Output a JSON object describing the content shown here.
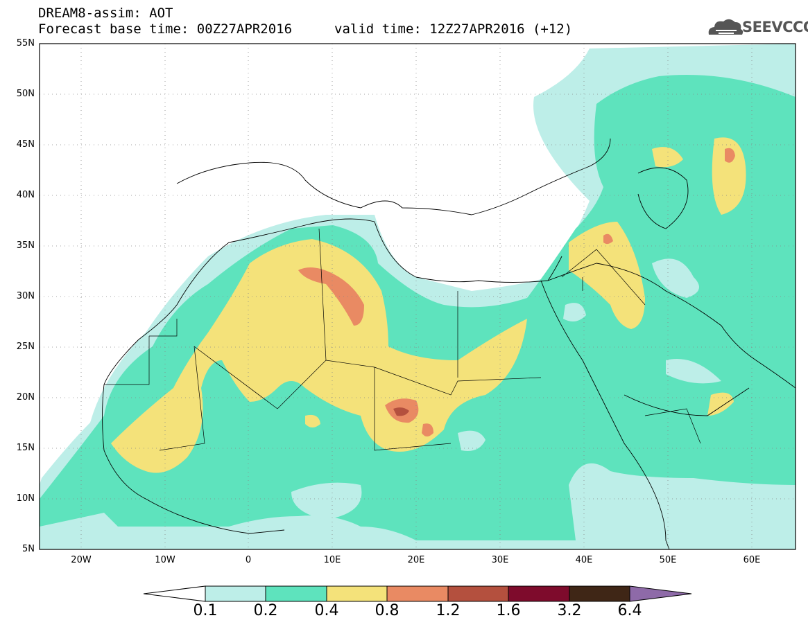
{
  "header": {
    "line1": "DREAM8-assim: AOT",
    "line2": "Forecast base time: 00Z27APR2016",
    "valid": "valid time: 12Z27APR2016 (+12)"
  },
  "logo": {
    "text": "SEEVCCC",
    "icon": "cloud-icon"
  },
  "map": {
    "projection": "lat-lon",
    "lon_range": [
      -25,
      65
    ],
    "lat_range": [
      5,
      55
    ],
    "lat_ticks": [
      "55N",
      "50N",
      "45N",
      "40N",
      "35N",
      "30N",
      "25N",
      "20N",
      "15N",
      "10N",
      "5N"
    ],
    "lon_ticks": [
      "20W",
      "10W",
      "0",
      "10E",
      "20E",
      "30E",
      "40E",
      "50E",
      "60E"
    ],
    "grid": "dotted"
  },
  "colorbar": {
    "levels": [
      "0.1",
      "0.2",
      "0.4",
      "0.8",
      "1.2",
      "1.6",
      "3.2",
      "6.4"
    ],
    "colors": [
      "#bdeee8",
      "#5ee3bd",
      "#f4e27a",
      "#e98a63",
      "#b4503e",
      "#7e0b2c",
      "#3f2616",
      "#8e6aa8"
    ],
    "below_color": "#ffffff"
  }
}
